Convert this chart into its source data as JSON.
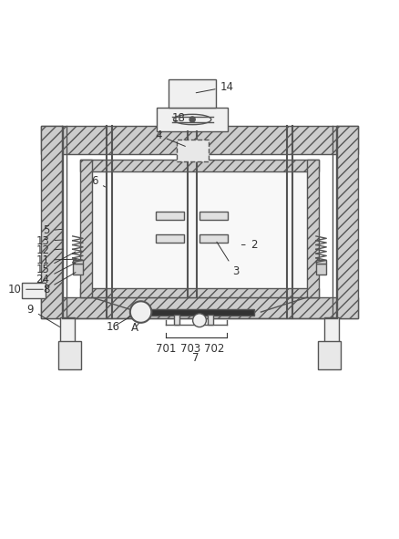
{
  "bg_color": "#ffffff",
  "line_color": "#555555",
  "label_color": "#333333",
  "figsize": [
    4.38,
    5.91
  ],
  "dpi": 100
}
